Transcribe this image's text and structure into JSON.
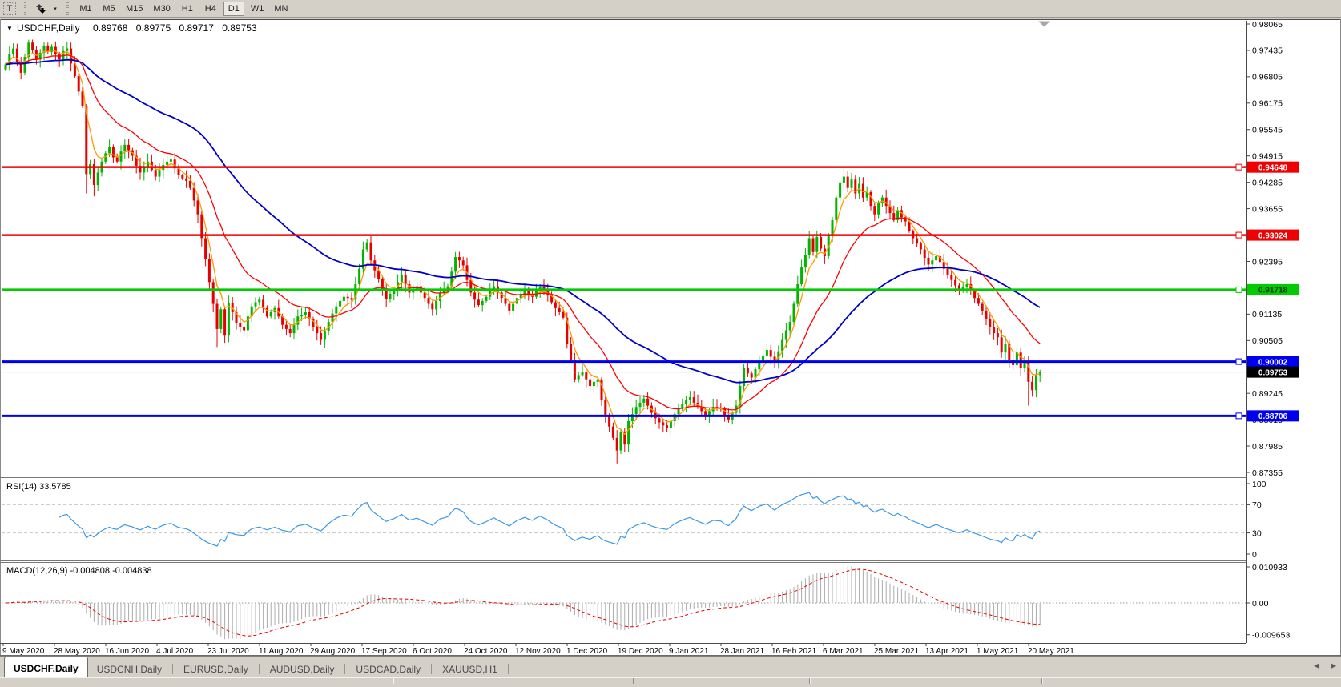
{
  "toolbar": {
    "text_tool_label": "T",
    "dropdown_caret": "▾",
    "timeframes": [
      "M1",
      "M5",
      "M15",
      "M30",
      "H1",
      "H4",
      "D1",
      "W1",
      "MN"
    ],
    "active_timeframe": "D1"
  },
  "header": {
    "collapse_arrow": "▼",
    "symbol_title": "USDCHF,Daily",
    "open": "0.89768",
    "high": "0.89775",
    "low": "0.89717",
    "close": "0.89753"
  },
  "price_axis": {
    "ticks": [
      "0.98065",
      "0.97435",
      "0.96805",
      "0.96175",
      "0.95545",
      "0.94915",
      "0.94285",
      "0.93655",
      "0.93025",
      "0.92395",
      "0.91765",
      "0.91135",
      "0.90505",
      "0.89875",
      "0.89245",
      "0.88615",
      "0.87985",
      "0.87355"
    ]
  },
  "levels": [
    {
      "value": "0.94648",
      "price": 0.94648,
      "color": "#f00000",
      "width": 2.5,
      "text_color": "#ffffff"
    },
    {
      "value": "0.93024",
      "price": 0.93024,
      "color": "#f00000",
      "width": 2.5,
      "text_color": "#ffffff"
    },
    {
      "value": "0.91718",
      "price": 0.91718,
      "color": "#00cc00",
      "width": 3,
      "text_color": "#003300"
    },
    {
      "value": "0.90002",
      "price": 0.90002,
      "color": "#0000f0",
      "width": 3,
      "text_color": "#ffffff"
    },
    {
      "value": "0.88706",
      "price": 0.88706,
      "color": "#0000f0",
      "width": 3,
      "text_color": "#ffffff"
    }
  ],
  "bid": {
    "value": "0.89753",
    "price": 0.89753,
    "line_color": "#b9b9b9",
    "label_bg": "#000000",
    "label_text": "#ffffff"
  },
  "rsi_panel": {
    "label": "RSI(14) 33.5785",
    "scale": [
      {
        "text": "100",
        "value": 100
      },
      {
        "text": "70",
        "value": 70
      },
      {
        "text": "30",
        "value": 30
      },
      {
        "text": "0",
        "value": 0
      }
    ],
    "dashed_levels": [
      70,
      30
    ],
    "line_color": "#3b97e8"
  },
  "macd_panel": {
    "label": "MACD(12,26,9) -0.004808 -0.004838",
    "scale": [
      {
        "text": "0.010933",
        "value": 0.010933
      },
      {
        "text": "0.00",
        "value": 0
      },
      {
        "text": "-0.009653",
        "value": -0.009653
      }
    ],
    "histogram_color": "#ababab",
    "signal_color": "#e60000"
  },
  "date_axis": {
    "labels": [
      "9 May 2020",
      "28 May 2020",
      "16 Jun 2020",
      "4 Jul 2020",
      "23 Jul 2020",
      "11 Aug 2020",
      "29 Aug 2020",
      "17 Sep 2020",
      "6 Oct 2020",
      "24 Oct 2020",
      "12 Nov 2020",
      "1 Dec 2020",
      "19 Dec 2020",
      "9 Jan 2021",
      "28 Jan 2021",
      "16 Feb 2021",
      "6 Mar 2021",
      "25 Mar 2021",
      "13 Apr 2021",
      "1 May 2021",
      "20 May 2021"
    ]
  },
  "tabs": {
    "items": [
      {
        "label": "USDCHF,Daily",
        "active": true
      },
      {
        "label": "USDCNH,Daily",
        "active": false
      },
      {
        "label": "EURUSD,Daily",
        "active": false
      },
      {
        "label": "AUDUSD,Daily",
        "active": false
      },
      {
        "label": "USDCAD,Daily",
        "active": false
      },
      {
        "label": "XAUUSD,H1",
        "active": false
      }
    ],
    "scroll_left": "◀",
    "scroll_right": "▶"
  },
  "theme": {
    "bull_color": "#00b400",
    "bear_color": "#e60000",
    "bid_line_color": "#b9b9b9",
    "axis_color": "#444444",
    "separator_color": "#787878",
    "rsi_dash_color": "#c8c8c8"
  },
  "chart_data": {
    "type": "candlestick",
    "symbol": "USDCHF",
    "period": "Daily",
    "bars": 270,
    "ylim": [
      0.87355,
      0.98065
    ],
    "x_range": [
      "9 May 2020",
      "27 May 2021"
    ],
    "closes": [
      0.971,
      0.9735,
      0.9748,
      0.9715,
      0.969,
      0.9728,
      0.9762,
      0.9745,
      0.9722,
      0.9738,
      0.9755,
      0.974,
      0.9752,
      0.9735,
      0.9722,
      0.9742,
      0.9748,
      0.9712,
      0.9682,
      0.9645,
      0.961,
      0.9448,
      0.9472,
      0.9422,
      0.9452,
      0.9478,
      0.9498,
      0.9512,
      0.9488,
      0.9478,
      0.9502,
      0.9518,
      0.9505,
      0.9492,
      0.9468,
      0.9452,
      0.9465,
      0.9478,
      0.9458,
      0.9442,
      0.9458,
      0.947,
      0.9478,
      0.9483,
      0.9462,
      0.9445,
      0.9438,
      0.9432,
      0.9415,
      0.9385,
      0.9352,
      0.9295,
      0.9245,
      0.919,
      0.9138,
      0.9078,
      0.9125,
      0.9062,
      0.914,
      0.9118,
      0.9092,
      0.9082,
      0.9075,
      0.9108,
      0.9132,
      0.9142,
      0.9148,
      0.9128,
      0.9108,
      0.9118,
      0.9128,
      0.9108,
      0.9088,
      0.9078,
      0.9068,
      0.9088,
      0.9108,
      0.9112,
      0.9118,
      0.9102,
      0.9082,
      0.9068,
      0.9052,
      0.9072,
      0.9095,
      0.9115,
      0.9132,
      0.9145,
      0.9155,
      0.9152,
      0.9148,
      0.9185,
      0.9222,
      0.9268,
      0.9285,
      0.9242,
      0.9218,
      0.9198,
      0.9172,
      0.915,
      0.9162,
      0.9172,
      0.919,
      0.9208,
      0.9185,
      0.9165,
      0.9172,
      0.918,
      0.9165,
      0.9152,
      0.9138,
      0.9125,
      0.9145,
      0.9165,
      0.9172,
      0.918,
      0.9215,
      0.925,
      0.9242,
      0.923,
      0.9195,
      0.9165,
      0.9148,
      0.9135,
      0.9145,
      0.9155,
      0.9168,
      0.918,
      0.9165,
      0.9152,
      0.9138,
      0.9122,
      0.9138,
      0.9152,
      0.9162,
      0.9172,
      0.9162,
      0.9155,
      0.9168,
      0.9178,
      0.9168,
      0.9158,
      0.9142,
      0.9128,
      0.9118,
      0.9105,
      0.9042,
      0.9005,
      0.8958,
      0.8968,
      0.8975,
      0.8958,
      0.8942,
      0.8952,
      0.8958,
      0.8908,
      0.8872,
      0.8845,
      0.8818,
      0.8788,
      0.8832,
      0.8802,
      0.8858,
      0.8875,
      0.8892,
      0.8902,
      0.8912,
      0.8895,
      0.8878,
      0.8865,
      0.8855,
      0.8848,
      0.8842,
      0.8858,
      0.8875,
      0.8888,
      0.8898,
      0.8908,
      0.8915,
      0.8902,
      0.8892,
      0.8882,
      0.8872,
      0.8882,
      0.8892,
      0.889,
      0.8888,
      0.8872,
      0.8862,
      0.8878,
      0.8895,
      0.8942,
      0.8985,
      0.8972,
      0.8962,
      0.8982,
      0.9002,
      0.9015,
      0.9028,
      0.9012,
      0.8998,
      0.9025,
      0.9052,
      0.9075,
      0.9095,
      0.9138,
      0.9185,
      0.9225,
      0.9255,
      0.9295,
      0.9262,
      0.9298,
      0.927,
      0.9252,
      0.9302,
      0.9338,
      0.9392,
      0.9428,
      0.9442,
      0.9415,
      0.9435,
      0.9402,
      0.9425,
      0.9392,
      0.9405,
      0.9372,
      0.9352,
      0.9378,
      0.9392,
      0.9372,
      0.9355,
      0.9338,
      0.9362,
      0.9345,
      0.9335,
      0.9312,
      0.9295,
      0.9282,
      0.9268,
      0.9248,
      0.9232,
      0.9242,
      0.9252,
      0.9238,
      0.9222,
      0.9208,
      0.9195,
      0.9182,
      0.9172,
      0.9178,
      0.9185,
      0.9168,
      0.9152,
      0.9138,
      0.9122,
      0.9102,
      0.9082,
      0.9068,
      0.9058,
      0.9022,
      0.9042,
      0.9005,
      0.8992,
      0.9022,
      0.8985,
      0.8998,
      0.8952,
      0.8932,
      0.8968,
      0.89753
    ],
    "wick_overrides": {
      "6": {
        "high": 0.9769
      },
      "21": {
        "low": 0.9402
      },
      "23": {
        "low": 0.9395
      },
      "55": {
        "low": 0.9035
      },
      "82": {
        "low": 0.904
      },
      "94": {
        "high": 0.9293
      },
      "117": {
        "high": 0.9262
      },
      "159": {
        "low": 0.8757
      },
      "209": {
        "high": 0.9312
      },
      "218": {
        "high": 0.94648
      },
      "266": {
        "low": 0.8895
      }
    },
    "moving_averages": [
      {
        "period": 5,
        "color": "#ff9900",
        "width": 1.3
      },
      {
        "period": 20,
        "color": "#ff0000",
        "width": 1.3
      },
      {
        "period": 60,
        "color": "#0000cc",
        "width": 1.8
      }
    ],
    "indicators": {
      "rsi_period": 14,
      "rsi_current": 33.5785,
      "macd_fast": 12,
      "macd_slow": 26,
      "macd_signal": 9,
      "macd_current": -0.004808,
      "macd_signal_current": -0.004838
    },
    "horizontal_levels": [
      0.94648,
      0.93024,
      0.91718,
      0.90002,
      0.88706
    ]
  }
}
